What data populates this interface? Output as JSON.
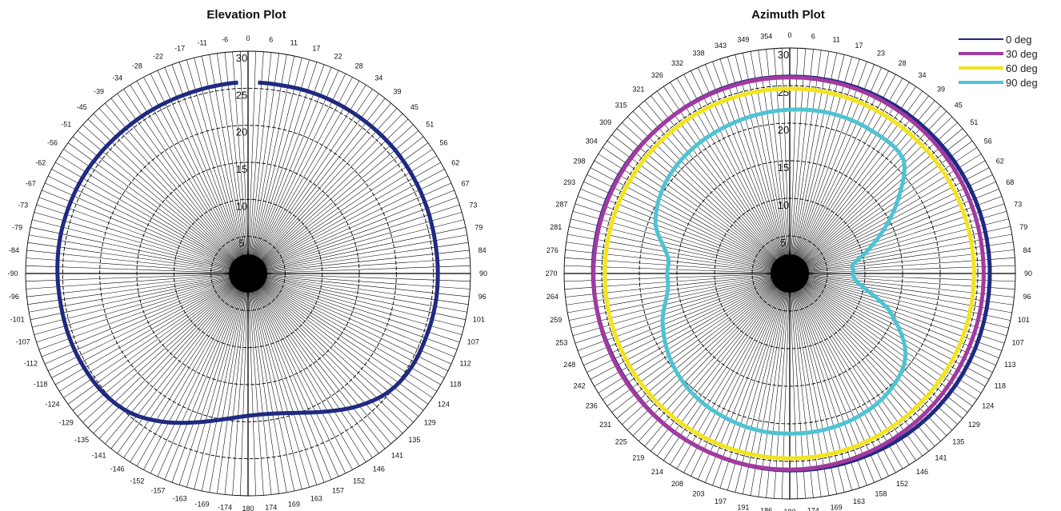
{
  "chart_data": [
    {
      "type": "polar-line",
      "title": "Elevation Plot",
      "radial_range": [
        0,
        30
      ],
      "radial_ticks": [
        5,
        10,
        15,
        20,
        25,
        30
      ],
      "angle_tick_labels": [
        "0",
        "6",
        "11",
        "17",
        "22",
        "28",
        "34",
        "39",
        "45",
        "51",
        "56",
        "62",
        "67",
        "73",
        "79",
        "84",
        "90",
        "96",
        "101",
        "107",
        "112",
        "118",
        "124",
        "129",
        "135",
        "141",
        "146",
        "152",
        "157",
        "163",
        "169",
        "174",
        "180",
        "-174",
        "-169",
        "-163",
        "-157",
        "-152",
        "-146",
        "-141",
        "-135",
        "-129",
        "-124",
        "-118",
        "-112",
        "-107",
        "-101",
        "-96",
        "-90",
        "-84",
        "-79",
        "-73",
        "-67",
        "-62",
        "-56",
        "-51",
        "-45",
        "-39",
        "-34",
        "-28",
        "-22",
        "-17",
        "-11",
        "-6"
      ],
      "grid": true,
      "series": [
        {
          "color": "#1f2a80",
          "angles_deg": [
            3,
            10,
            20,
            30,
            40,
            50,
            60,
            70,
            80,
            90,
            100,
            110,
            120,
            130,
            140,
            150,
            160,
            170,
            180,
            190,
            200,
            210,
            220,
            230,
            240,
            250,
            260,
            270,
            280,
            290,
            300,
            310,
            320,
            330,
            340,
            350,
            357
          ],
          "values": [
            25.8,
            25.8,
            25.9,
            25.9,
            25.9,
            25.9,
            25.8,
            25.7,
            25.6,
            25.6,
            25.6,
            25.5,
            25.4,
            24.8,
            23.3,
            21.5,
            20.0,
            19.2,
            19.2,
            20.0,
            21.4,
            23.1,
            24.6,
            25.3,
            25.5,
            25.6,
            25.6,
            25.7,
            25.8,
            25.8,
            25.8,
            25.7,
            25.6,
            25.6,
            25.6,
            25.7,
            25.8
          ]
        }
      ]
    },
    {
      "type": "polar-line",
      "title": "Azimuth Plot",
      "radial_range": [
        0,
        30
      ],
      "radial_ticks": [
        5,
        10,
        15,
        20,
        25,
        30
      ],
      "angle_tick_labels": [
        "0",
        "6",
        "11",
        "17",
        "23",
        "28",
        "34",
        "39",
        "45",
        "51",
        "56",
        "62",
        "68",
        "73",
        "79",
        "84",
        "90",
        "96",
        "101",
        "107",
        "113",
        "118",
        "124",
        "129",
        "135",
        "141",
        "146",
        "152",
        "158",
        "163",
        "169",
        "174",
        "180",
        "186",
        "191",
        "197",
        "203",
        "208",
        "214",
        "219",
        "225",
        "231",
        "236",
        "242",
        "248",
        "253",
        "259",
        "264",
        "270",
        "276",
        "281",
        "287",
        "293",
        "298",
        "304",
        "309",
        "315",
        "321",
        "326",
        "332",
        "338",
        "343",
        "349",
        "354"
      ],
      "grid": true,
      "legend_position": "top-right",
      "series": [
        {
          "name": "0 deg",
          "color": "#1f2a80",
          "angles_deg": [
            0,
            20,
            40,
            60,
            80,
            100,
            120,
            140,
            160,
            180,
            200,
            220,
            240,
            260,
            280,
            300,
            320,
            340
          ],
          "values": [
            26.2,
            26.3,
            26.4,
            26.5,
            26.6,
            26.6,
            26.6,
            26.5,
            26.3,
            26.2,
            26.1,
            26.1,
            26.0,
            26.1,
            26.2,
            26.2,
            26.1,
            26.2
          ]
        },
        {
          "name": "30 deg",
          "color": "#a23a9f",
          "angles_deg": [
            0,
            20,
            40,
            60,
            80,
            100,
            120,
            140,
            160,
            180,
            200,
            220,
            240,
            260,
            280,
            300,
            320,
            340
          ],
          "values": [
            26.1,
            26.1,
            26.0,
            25.9,
            25.8,
            25.8,
            25.8,
            25.9,
            26.0,
            26.1,
            26.1,
            26.1,
            26.1,
            26.1,
            26.1,
            26.1,
            26.1,
            26.1
          ]
        },
        {
          "name": "60 deg",
          "color": "#f2e41e",
          "angles_deg": [
            0,
            20,
            40,
            60,
            80,
            100,
            120,
            140,
            160,
            180,
            200,
            220,
            240,
            260,
            280,
            300,
            320,
            340
          ],
          "values": [
            24.6,
            24.6,
            24.5,
            24.5,
            24.5,
            24.5,
            24.5,
            24.5,
            24.6,
            24.6,
            24.6,
            24.6,
            24.6,
            24.6,
            24.6,
            24.6,
            24.6,
            24.6
          ]
        },
        {
          "name": "90 deg",
          "color": "#4fc3d3",
          "angles_deg": [
            0,
            15,
            30,
            45,
            55,
            65,
            75,
            82,
            88,
            93,
            100,
            110,
            125,
            140,
            155,
            170,
            180,
            190,
            205,
            220,
            235,
            250,
            262,
            270,
            278,
            290,
            305,
            320,
            335,
            350
          ],
          "values": [
            21.8,
            22.0,
            21.9,
            21.4,
            17.7,
            13.8,
            10.4,
            8.5,
            8.5,
            8.5,
            9.8,
            14.0,
            18.8,
            20.5,
            21.1,
            21.3,
            21.3,
            21.3,
            21.0,
            20.5,
            19.5,
            18.0,
            16.4,
            16.3,
            16.4,
            19.0,
            20.4,
            21.0,
            21.3,
            21.6
          ]
        }
      ]
    }
  ]
}
